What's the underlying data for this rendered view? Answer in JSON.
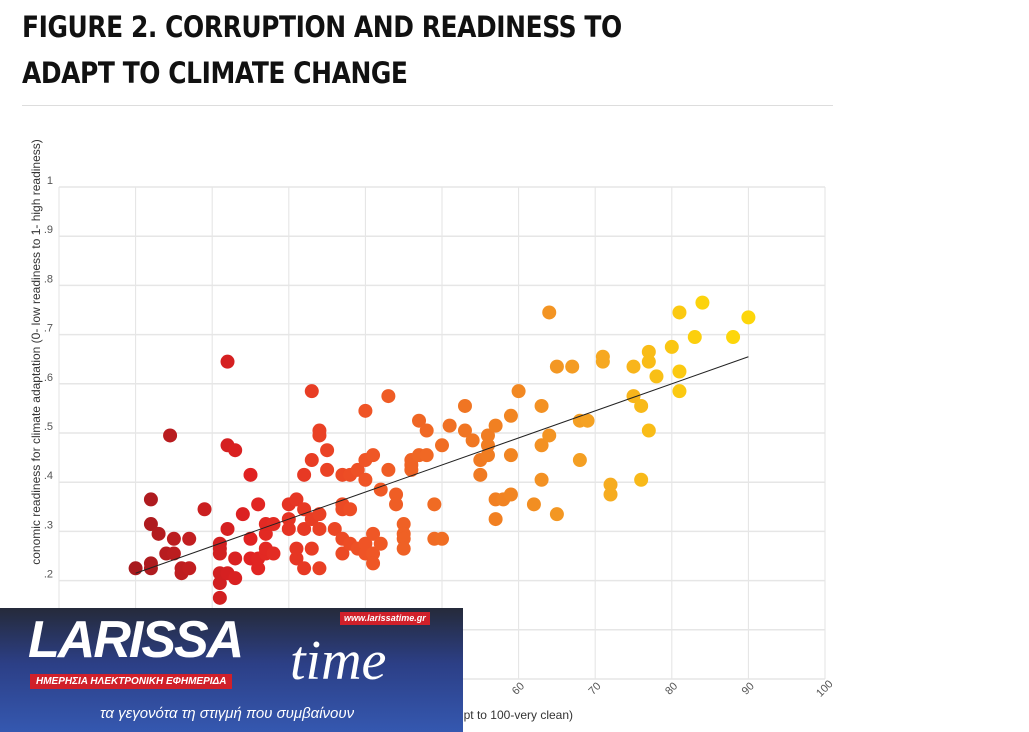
{
  "header": {
    "title": "FIGURE 2. CORRUPTION AND READINESS TO ADAPT TO CLIMATE CHANGE"
  },
  "chart_data": {
    "type": "scatter",
    "title": "FIGURE 2. CORRUPTION AND READINESS TO ADAPT TO CLIMATE CHANGE",
    "xlabel": "upt to 100-very clean)",
    "ylabel": "conomic readiness for climate adaptation (0- low readiness to 1- high readiness)",
    "xlim": [
      0,
      100
    ],
    "ylim": [
      0,
      1
    ],
    "grid": true,
    "x_ticks": [
      "60",
      "70",
      "80",
      "90",
      "100"
    ],
    "x_tick_values": [
      60,
      70,
      80,
      90,
      100
    ],
    "y_ticks": [
      "1",
      ".9",
      ".8",
      ".7",
      ".6",
      ".5",
      ".4",
      ".3",
      ".2"
    ],
    "y_tick_values": [
      1,
      0.9,
      0.8,
      0.7,
      0.6,
      0.5,
      0.4,
      0.3,
      0.2
    ],
    "trendline": [
      [
        10,
        0.215
      ],
      [
        90,
        0.655
      ]
    ],
    "color_scale": [
      "#a81a1e",
      "#e02222",
      "#ef5426",
      "#f07a22",
      "#f5a523",
      "#fdd60a"
    ],
    "points": [
      [
        10,
        0.225
      ],
      [
        12,
        0.235
      ],
      [
        12,
        0.225
      ],
      [
        12,
        0.315
      ],
      [
        12,
        0.365
      ],
      [
        13,
        0.295
      ],
      [
        14,
        0.255
      ],
      [
        15,
        0.285
      ],
      [
        15,
        0.255
      ],
      [
        16,
        0.215
      ],
      [
        16,
        0.225
      ],
      [
        14.5,
        0.495
      ],
      [
        17,
        0.285
      ],
      [
        17,
        0.225
      ],
      [
        19,
        0.345
      ],
      [
        21,
        0.215
      ],
      [
        21,
        0.275
      ],
      [
        21,
        0.265
      ],
      [
        21,
        0.255
      ],
      [
        21,
        0.165
      ],
      [
        21,
        0.195
      ],
      [
        22,
        0.215
      ],
      [
        22,
        0.305
      ],
      [
        22,
        0.475
      ],
      [
        22,
        0.645
      ],
      [
        23,
        0.465
      ],
      [
        23,
        0.205
      ],
      [
        23,
        0.245
      ],
      [
        24,
        0.335
      ],
      [
        25,
        0.285
      ],
      [
        25,
        0.245
      ],
      [
        25,
        0.415
      ],
      [
        26,
        0.355
      ],
      [
        26,
        0.225
      ],
      [
        26,
        0.245
      ],
      [
        27,
        0.255
      ],
      [
        27,
        0.265
      ],
      [
        27,
        0.295
      ],
      [
        27,
        0.315
      ],
      [
        28,
        0.315
      ],
      [
        28,
        0.255
      ],
      [
        30,
        0.355
      ],
      [
        30,
        0.325
      ],
      [
        30,
        0.305
      ],
      [
        31,
        0.365
      ],
      [
        31,
        0.245
      ],
      [
        31,
        0.265
      ],
      [
        32,
        0.415
      ],
      [
        32,
        0.345
      ],
      [
        32,
        0.305
      ],
      [
        32,
        0.225
      ],
      [
        33,
        0.445
      ],
      [
        33,
        0.585
      ],
      [
        33,
        0.265
      ],
      [
        33,
        0.325
      ],
      [
        34,
        0.495
      ],
      [
        34,
        0.505
      ],
      [
        34,
        0.225
      ],
      [
        34,
        0.335
      ],
      [
        34,
        0.305
      ],
      [
        35,
        0.465
      ],
      [
        35,
        0.425
      ],
      [
        36,
        0.305
      ],
      [
        37,
        0.415
      ],
      [
        37,
        0.355
      ],
      [
        37,
        0.345
      ],
      [
        37,
        0.285
      ],
      [
        37,
        0.255
      ],
      [
        38,
        0.415
      ],
      [
        38,
        0.275
      ],
      [
        38,
        0.345
      ],
      [
        39,
        0.425
      ],
      [
        39,
        0.265
      ],
      [
        40,
        0.405
      ],
      [
        40,
        0.545
      ],
      [
        40,
        0.445
      ],
      [
        40,
        0.275
      ],
      [
        40,
        0.255
      ],
      [
        41,
        0.455
      ],
      [
        41,
        0.295
      ],
      [
        41,
        0.255
      ],
      [
        41,
        0.235
      ],
      [
        42,
        0.385
      ],
      [
        42,
        0.275
      ],
      [
        43,
        0.425
      ],
      [
        43,
        0.575
      ],
      [
        44,
        0.375
      ],
      [
        44,
        0.355
      ],
      [
        45,
        0.315
      ],
      [
        45,
        0.295
      ],
      [
        45,
        0.285
      ],
      [
        45,
        0.265
      ],
      [
        46,
        0.445
      ],
      [
        46,
        0.435
      ],
      [
        46,
        0.425
      ],
      [
        47,
        0.525
      ],
      [
        47,
        0.455
      ],
      [
        48,
        0.455
      ],
      [
        48,
        0.505
      ],
      [
        49,
        0.355
      ],
      [
        49,
        0.285
      ],
      [
        50,
        0.285
      ],
      [
        50,
        0.475
      ],
      [
        51,
        0.515
      ],
      [
        53,
        0.555
      ],
      [
        53,
        0.505
      ],
      [
        54,
        0.485
      ],
      [
        55,
        0.415
      ],
      [
        55,
        0.445
      ],
      [
        56,
        0.475
      ],
      [
        56,
        0.495
      ],
      [
        56,
        0.455
      ],
      [
        57,
        0.365
      ],
      [
        57,
        0.325
      ],
      [
        57,
        0.515
      ],
      [
        58,
        0.365
      ],
      [
        59,
        0.375
      ],
      [
        59,
        0.455
      ],
      [
        59,
        0.535
      ],
      [
        60,
        0.585
      ],
      [
        62,
        0.355
      ],
      [
        63,
        0.405
      ],
      [
        63,
        0.475
      ],
      [
        63,
        0.555
      ],
      [
        64,
        0.495
      ],
      [
        64,
        0.745
      ],
      [
        65,
        0.335
      ],
      [
        65,
        0.635
      ],
      [
        67,
        0.635
      ],
      [
        68,
        0.525
      ],
      [
        68,
        0.445
      ],
      [
        69,
        0.525
      ],
      [
        71,
        0.655
      ],
      [
        71,
        0.645
      ],
      [
        72,
        0.395
      ],
      [
        72,
        0.375
      ],
      [
        75,
        0.575
      ],
      [
        75,
        0.635
      ],
      [
        76,
        0.555
      ],
      [
        76,
        0.405
      ],
      [
        77,
        0.665
      ],
      [
        77,
        0.645
      ],
      [
        77,
        0.505
      ],
      [
        78,
        0.615
      ],
      [
        80,
        0.675
      ],
      [
        81,
        0.745
      ],
      [
        81,
        0.625
      ],
      [
        81,
        0.585
      ],
      [
        83,
        0.695
      ],
      [
        84,
        0.765
      ],
      [
        88,
        0.695
      ],
      [
        90,
        0.735
      ]
    ]
  },
  "logo": {
    "brand": "LARISSA",
    "brand_suffix": "time",
    "url": "www.larissatime.gr",
    "subtitle": "ΗΜΕΡΗΣΙΑ ΗΛΕΚΤΡΟΝΙΚΗ ΕΦΗΜΕΡΙΔΑ",
    "slogan": "τα γεγονότα τη στιγμή που συμβαίνουν"
  }
}
